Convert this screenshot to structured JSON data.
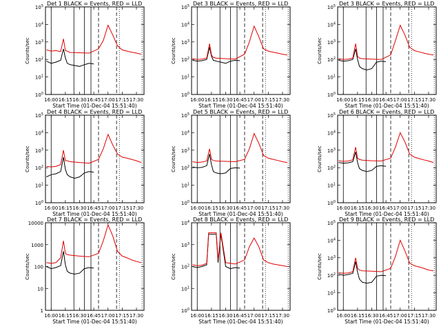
{
  "figure": {
    "xlabel": "Start Time (01-Dec-04 15:51:40)",
    "ylabel": "Counts/sec",
    "x_ticks": [
      "16:00",
      "16:15",
      "16:30",
      "16:45",
      "17:00",
      "17:15",
      "17:30"
    ],
    "colors": {
      "events": "#000000",
      "lld": "#e00000",
      "axes": "#000000"
    }
  },
  "chart_data": [
    {
      "type": "line",
      "title": "Det 1  BLACK = Events, RED = LLD",
      "yscale": "log",
      "ylim_exp": [
        0,
        5
      ],
      "ytick_style": "power",
      "series": [
        {
          "name": "Events",
          "key": "events",
          "color": "#000000",
          "x": [
            "15:55",
            "16:00",
            "16:05",
            "16:10",
            "16:13",
            "16:15",
            "16:17",
            "16:20",
            "16:25",
            "16:30",
            "16:35",
            "16:40",
            "16:45"
          ],
          "values": [
            80,
            60,
            70,
            90,
            400,
            120,
            60,
            50,
            45,
            40,
            50,
            60,
            55
          ]
        },
        {
          "name": "LLD",
          "key": "lld",
          "color": "#e00000",
          "x": [
            "15:55",
            "16:00",
            "16:05",
            "16:10",
            "16:13",
            "16:15",
            "16:17",
            "16:20",
            "16:30",
            "16:40",
            "16:50",
            "16:55",
            "17:00",
            "17:05",
            "17:10",
            "17:15",
            "17:20",
            "17:25",
            "17:30",
            "17:35"
          ],
          "values": [
            350,
            300,
            320,
            280,
            1500,
            320,
            300,
            250,
            240,
            230,
            400,
            1200,
            9000,
            2500,
            600,
            350,
            300,
            260,
            230,
            200
          ]
        }
      ]
    },
    {
      "type": "line",
      "title": "Det 3  BLACK = Events, RED = LLD",
      "yscale": "log",
      "ylim_exp": [
        0,
        5
      ],
      "ytick_style": "power",
      "series": [
        {
          "name": "Events",
          "key": "events",
          "color": "#000000",
          "x": [
            "15:55",
            "16:00",
            "16:05",
            "16:10",
            "16:13",
            "16:15",
            "16:17",
            "16:20",
            "16:25",
            "16:30",
            "16:35",
            "16:40",
            "16:45"
          ],
          "values": [
            90,
            80,
            85,
            100,
            500,
            150,
            90,
            80,
            70,
            60,
            80,
            90,
            85
          ]
        },
        {
          "name": "LLD",
          "key": "lld",
          "color": "#e00000",
          "x": [
            "15:55",
            "16:00",
            "16:05",
            "16:10",
            "16:13",
            "16:15",
            "16:17",
            "16:20",
            "16:30",
            "16:40",
            "16:50",
            "16:55",
            "17:00",
            "17:05",
            "17:10",
            "17:15",
            "17:20",
            "17:25",
            "17:30",
            "17:35"
          ],
          "values": [
            110,
            100,
            105,
            120,
            800,
            180,
            130,
            120,
            110,
            105,
            200,
            1000,
            8000,
            2000,
            400,
            300,
            260,
            230,
            200,
            180
          ]
        }
      ]
    },
    {
      "type": "line",
      "title": "Det 3  BLACK = Events, RED = LLD",
      "yscale": "log",
      "ylim_exp": [
        0,
        5
      ],
      "ytick_style": "power",
      "series": [
        {
          "name": "Events",
          "key": "events",
          "color": "#000000",
          "x": [
            "15:55",
            "16:00",
            "16:05",
            "16:10",
            "16:13",
            "16:15",
            "16:17",
            "16:20",
            "16:25",
            "16:30",
            "16:35",
            "16:40",
            "16:45"
          ],
          "values": [
            90,
            80,
            85,
            100,
            400,
            100,
            40,
            30,
            25,
            30,
            70,
            80,
            75
          ]
        },
        {
          "name": "LLD",
          "key": "lld",
          "color": "#e00000",
          "x": [
            "15:55",
            "16:00",
            "16:05",
            "16:10",
            "16:13",
            "16:15",
            "16:17",
            "16:20",
            "16:30",
            "16:40",
            "16:50",
            "16:55",
            "17:00",
            "17:05",
            "17:10",
            "17:15",
            "17:20",
            "17:25",
            "17:30",
            "17:35"
          ],
          "values": [
            110,
            100,
            105,
            120,
            800,
            150,
            120,
            110,
            105,
            100,
            180,
            1200,
            9000,
            2500,
            500,
            320,
            270,
            230,
            200,
            180
          ]
        }
      ]
    },
    {
      "type": "line",
      "title": "Det 4  BLACK = Events, RED = LLD",
      "yscale": "log",
      "ylim_exp": [
        0,
        5
      ],
      "ytick_style": "power",
      "series": [
        {
          "name": "Events",
          "key": "events",
          "color": "#000000",
          "x": [
            "15:55",
            "16:00",
            "16:05",
            "16:10",
            "16:13",
            "16:15",
            "16:17",
            "16:20",
            "16:25",
            "16:30",
            "16:35",
            "16:40",
            "16:45"
          ],
          "values": [
            30,
            40,
            45,
            60,
            400,
            80,
            40,
            30,
            25,
            30,
            50,
            60,
            55
          ]
        },
        {
          "name": "LLD",
          "key": "lld",
          "color": "#e00000",
          "x": [
            "15:55",
            "16:00",
            "16:05",
            "16:10",
            "16:13",
            "16:15",
            "16:17",
            "16:20",
            "16:30",
            "16:40",
            "16:50",
            "16:55",
            "17:00",
            "17:05",
            "17:10",
            "17:15",
            "17:20",
            "17:25",
            "17:30",
            "17:35"
          ],
          "values": [
            120,
            110,
            120,
            150,
            1000,
            250,
            250,
            220,
            200,
            180,
            300,
            1200,
            8000,
            2000,
            600,
            400,
            350,
            300,
            250,
            200
          ]
        }
      ]
    },
    {
      "type": "line",
      "title": "Det 5  BLACK = Events, RED = LLD",
      "yscale": "log",
      "ylim_exp": [
        0,
        5
      ],
      "ytick_style": "power",
      "series": [
        {
          "name": "Events",
          "key": "events",
          "color": "#000000",
          "x": [
            "15:55",
            "16:00",
            "16:05",
            "16:10",
            "16:13",
            "16:15",
            "16:17",
            "16:20",
            "16:25",
            "16:30",
            "16:35",
            "16:40",
            "16:45"
          ],
          "values": [
            110,
            100,
            105,
            130,
            600,
            150,
            60,
            50,
            45,
            50,
            90,
            100,
            95
          ]
        },
        {
          "name": "LLD",
          "key": "lld",
          "color": "#e00000",
          "x": [
            "15:55",
            "16:00",
            "16:05",
            "16:10",
            "16:13",
            "16:15",
            "16:17",
            "16:20",
            "16:30",
            "16:40",
            "16:50",
            "16:55",
            "17:00",
            "17:05",
            "17:10",
            "17:15",
            "17:20",
            "17:25",
            "17:30",
            "17:35"
          ],
          "values": [
            220,
            200,
            210,
            240,
            1200,
            300,
            260,
            240,
            230,
            220,
            300,
            1200,
            9000,
            2500,
            500,
            350,
            300,
            260,
            220,
            200
          ]
        }
      ]
    },
    {
      "type": "line",
      "title": "Det 6  BLACK = Events, RED = LLD",
      "yscale": "log",
      "ylim_exp": [
        0,
        5
      ],
      "ytick_style": "power",
      "series": [
        {
          "name": "Events",
          "key": "events",
          "color": "#000000",
          "x": [
            "15:55",
            "16:00",
            "16:05",
            "16:10",
            "16:13",
            "16:15",
            "16:17",
            "16:20",
            "16:25",
            "16:30",
            "16:35",
            "16:40",
            "16:45"
          ],
          "values": [
            200,
            180,
            190,
            220,
            800,
            200,
            90,
            70,
            60,
            70,
            120,
            130,
            120
          ]
        },
        {
          "name": "LLD",
          "key": "lld",
          "color": "#e00000",
          "x": [
            "15:55",
            "16:00",
            "16:05",
            "16:10",
            "16:13",
            "16:15",
            "16:17",
            "16:20",
            "16:30",
            "16:40",
            "16:50",
            "16:55",
            "17:00",
            "17:05",
            "17:10",
            "17:15",
            "17:20",
            "17:25",
            "17:30",
            "17:35"
          ],
          "values": [
            250,
            230,
            240,
            280,
            1500,
            350,
            300,
            270,
            250,
            240,
            350,
            1500,
            10000,
            3000,
            600,
            400,
            330,
            280,
            240,
            200
          ]
        }
      ]
    },
    {
      "type": "line",
      "title": "Det 7  BLACK = Events, RED = LLD",
      "yscale": "log",
      "ylim_exp": [
        0,
        4
      ],
      "ytick_style": "plain",
      "series": [
        {
          "name": "Events",
          "key": "events",
          "color": "#000000",
          "x": [
            "15:55",
            "16:00",
            "16:05",
            "16:10",
            "16:13",
            "16:15",
            "16:17",
            "16:20",
            "16:25",
            "16:30",
            "16:35",
            "16:40",
            "16:45"
          ],
          "values": [
            100,
            80,
            90,
            110,
            500,
            120,
            60,
            50,
            45,
            50,
            80,
            90,
            85
          ]
        },
        {
          "name": "LLD",
          "key": "lld",
          "color": "#e00000",
          "x": [
            "15:55",
            "16:00",
            "16:05",
            "16:10",
            "16:13",
            "16:15",
            "16:17",
            "16:20",
            "16:30",
            "16:40",
            "16:50",
            "16:55",
            "17:00",
            "17:05",
            "17:10",
            "17:15",
            "17:20",
            "17:25",
            "17:30",
            "17:35"
          ],
          "values": [
            150,
            140,
            150,
            250,
            1500,
            400,
            350,
            330,
            300,
            280,
            400,
            1500,
            8000,
            2500,
            500,
            300,
            250,
            200,
            170,
            150
          ]
        }
      ]
    },
    {
      "type": "line",
      "title": "Det 8  BLACK = Events, RED = LLD",
      "yscale": "log",
      "ylim_exp": [
        0,
        4
      ],
      "ytick_style": "power",
      "series": [
        {
          "name": "Events",
          "key": "events",
          "color": "#000000",
          "x": [
            "15:55",
            "16:00",
            "16:05",
            "16:10",
            "16:12",
            "16:15",
            "16:20",
            "16:22",
            "16:25",
            "16:30",
            "16:35",
            "16:40",
            "16:45"
          ],
          "values": [
            100,
            90,
            100,
            120,
            3000,
            3000,
            3000,
            150,
            3000,
            100,
            80,
            90,
            85
          ]
        },
        {
          "name": "LLD",
          "key": "lld",
          "color": "#e00000",
          "x": [
            "15:55",
            "16:00",
            "16:05",
            "16:10",
            "16:12",
            "16:15",
            "16:20",
            "16:22",
            "16:25",
            "16:30",
            "16:40",
            "16:50",
            "16:55",
            "17:00",
            "17:05",
            "17:10",
            "17:15",
            "17:20",
            "17:30",
            "17:35"
          ],
          "values": [
            120,
            110,
            115,
            140,
            3500,
            3500,
            3500,
            200,
            3500,
            150,
            130,
            200,
            800,
            2000,
            800,
            200,
            150,
            130,
            110,
            100
          ]
        }
      ]
    },
    {
      "type": "line",
      "title": "Det 9  BLACK = Events, RED = LLD",
      "yscale": "log",
      "ylim_exp": [
        0,
        5
      ],
      "ytick_style": "power",
      "series": [
        {
          "name": "Events",
          "key": "events",
          "color": "#000000",
          "x": [
            "15:55",
            "16:00",
            "16:05",
            "16:10",
            "16:13",
            "16:15",
            "16:17",
            "16:20",
            "16:25",
            "16:30",
            "16:35",
            "16:40",
            "16:45"
          ],
          "values": [
            120,
            100,
            110,
            130,
            600,
            150,
            60,
            40,
            35,
            40,
            90,
            100,
            95
          ]
        },
        {
          "name": "LLD",
          "key": "lld",
          "color": "#e00000",
          "x": [
            "15:55",
            "16:00",
            "16:05",
            "16:10",
            "16:13",
            "16:15",
            "16:17",
            "16:20",
            "16:30",
            "16:40",
            "16:50",
            "16:55",
            "17:00",
            "17:05",
            "17:10",
            "17:15",
            "17:20",
            "17:25",
            "17:30",
            "17:35"
          ],
          "values": [
            140,
            130,
            135,
            160,
            1000,
            250,
            200,
            180,
            170,
            160,
            250,
            1200,
            10000,
            2500,
            500,
            350,
            300,
            250,
            200,
            180
          ]
        }
      ]
    }
  ]
}
